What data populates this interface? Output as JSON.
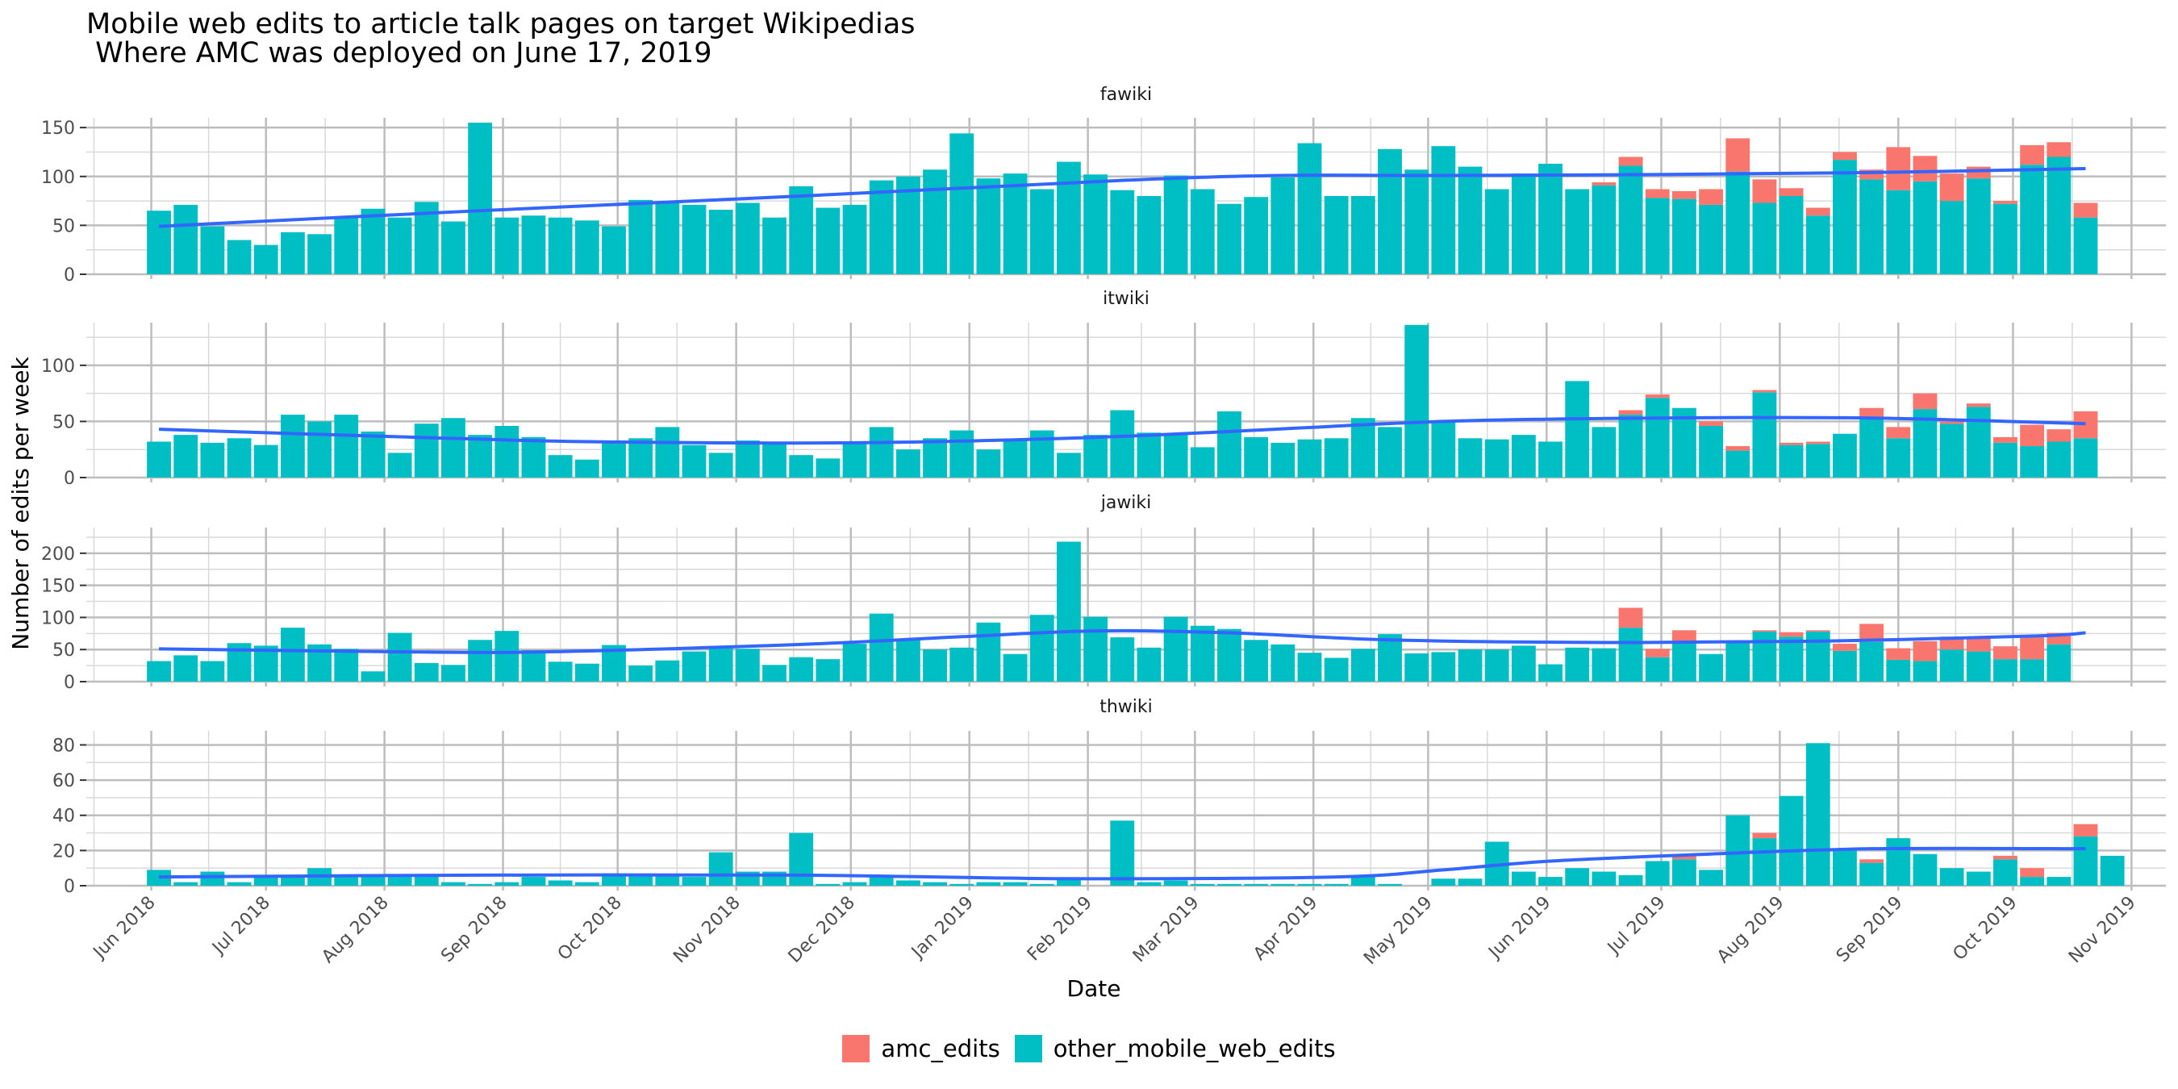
{
  "chart_data": {
    "type": "bar",
    "title": "Mobile web edits to article talk pages on target Wikipedias",
    "subtitle": " Where AMC was deployed on June 17, 2019",
    "xlabel": "Date",
    "ylabel": "Number of edits per week",
    "stacked": true,
    "smooth_trend_line": true,
    "trend_color": "#3366FF",
    "x_tick_labels": [
      "Jun 2018",
      "Jul 2018",
      "Aug 2018",
      "Sep 2018",
      "Oct 2018",
      "Nov 2018",
      "Dec 2018",
      "Jan 2019",
      "Feb 2019",
      "Mar 2019",
      "Apr 2019",
      "May 2019",
      "Jun 2019",
      "Jul 2019",
      "Aug 2019",
      "Sep 2019",
      "Oct 2019",
      "Nov 2019"
    ],
    "x_range": [
      "2018-05-15",
      "2019-11-10"
    ],
    "first_week": "2018-06-03",
    "week_interval_days": 7,
    "legend": {
      "position": "bottom",
      "entries": [
        {
          "key": "amc_edits",
          "label": "amc_edits",
          "color": "#F8766D"
        },
        {
          "key": "other",
          "label": "other_mobile_web_edits",
          "color": "#00BFC4"
        }
      ]
    },
    "panels": [
      {
        "name": "fawiki",
        "ylim": [
          0,
          160
        ],
        "yticks": [
          0,
          50,
          100,
          150
        ],
        "other": [
          65,
          71,
          49,
          35,
          30,
          43,
          41,
          58,
          67,
          58,
          74,
          54,
          155,
          58,
          60,
          58,
          55,
          49,
          76,
          74,
          71,
          66,
          73,
          58,
          90,
          68,
          71,
          96,
          100,
          107,
          144,
          98,
          103,
          87,
          115,
          102,
          86,
          80,
          101,
          87,
          72,
          79,
          99,
          134,
          80,
          80,
          128,
          107,
          131,
          110,
          87,
          103,
          113,
          87,
          91,
          111,
          78,
          77,
          71,
          105,
          73,
          80,
          60,
          117,
          97,
          86,
          95,
          75,
          98,
          72,
          112,
          120,
          58
        ],
        "amc": [
          0,
          0,
          0,
          0,
          0,
          0,
          0,
          0,
          0,
          0,
          0,
          0,
          0,
          0,
          0,
          0,
          0,
          0,
          0,
          0,
          0,
          0,
          0,
          0,
          0,
          0,
          0,
          0,
          0,
          0,
          0,
          0,
          0,
          0,
          0,
          0,
          0,
          0,
          0,
          0,
          0,
          0,
          0,
          0,
          0,
          0,
          0,
          0,
          0,
          0,
          0,
          0,
          0,
          0,
          3,
          9,
          9,
          8,
          16,
          34,
          24,
          8,
          8,
          8,
          10,
          44,
          26,
          28,
          12,
          3,
          20,
          15,
          15
        ],
        "trend": [
          [
            0,
            49
          ],
          [
            12,
            65
          ],
          [
            24,
            80
          ],
          [
            36,
            96
          ],
          [
            42,
            101
          ],
          [
            48,
            101
          ],
          [
            56,
            102
          ],
          [
            64,
            104
          ],
          [
            72,
            108
          ]
        ]
      },
      {
        "name": "itwiki",
        "ylim": [
          0,
          138
        ],
        "yticks": [
          0,
          50,
          100
        ],
        "other": [
          32,
          38,
          31,
          35,
          29,
          56,
          50,
          56,
          41,
          22,
          48,
          53,
          38,
          46,
          36,
          20,
          16,
          32,
          35,
          45,
          29,
          22,
          33,
          31,
          20,
          17,
          31,
          45,
          25,
          35,
          42,
          25,
          33,
          42,
          22,
          38,
          60,
          40,
          38,
          27,
          59,
          36,
          31,
          34,
          35,
          53,
          45,
          136,
          51,
          35,
          34,
          38,
          32,
          86,
          45,
          56,
          71,
          62,
          46,
          24,
          76,
          29,
          30,
          39,
          53,
          35,
          61,
          48,
          63,
          31,
          28,
          32,
          35
        ],
        "amc": [
          0,
          0,
          0,
          0,
          0,
          0,
          0,
          0,
          0,
          0,
          0,
          0,
          0,
          0,
          0,
          0,
          0,
          0,
          0,
          0,
          0,
          0,
          0,
          0,
          0,
          0,
          0,
          0,
          0,
          0,
          0,
          0,
          0,
          0,
          0,
          0,
          0,
          0,
          0,
          0,
          0,
          0,
          0,
          0,
          0,
          0,
          0,
          0,
          0,
          0,
          0,
          0,
          0,
          0,
          0,
          4,
          3,
          0,
          4,
          4,
          2,
          2,
          2,
          0,
          9,
          10,
          14,
          2,
          3,
          5,
          19,
          11,
          24
        ],
        "trend": [
          [
            0,
            43
          ],
          [
            8,
            37
          ],
          [
            16,
            32
          ],
          [
            26,
            31
          ],
          [
            34,
            35
          ],
          [
            40,
            41
          ],
          [
            48,
            50
          ],
          [
            56,
            53
          ],
          [
            64,
            53
          ],
          [
            72,
            48
          ]
        ]
      },
      {
        "name": "jawiki",
        "ylim": [
          0,
          240
        ],
        "yticks": [
          0,
          50,
          100,
          150,
          200
        ],
        "other": [
          32,
          41,
          32,
          60,
          56,
          84,
          58,
          51,
          16,
          76,
          29,
          26,
          65,
          79,
          49,
          31,
          28,
          57,
          25,
          33,
          47,
          52,
          51,
          26,
          38,
          35,
          59,
          106,
          65,
          50,
          53,
          92,
          43,
          104,
          218,
          101,
          69,
          53,
          101,
          87,
          82,
          65,
          58,
          45,
          37,
          51,
          74,
          44,
          46,
          50,
          50,
          56,
          27,
          53,
          52,
          84,
          38,
          62,
          43,
          64,
          78,
          70,
          78,
          48,
          62,
          34,
          32,
          50,
          47,
          35,
          35,
          58
        ],
        "amc": [
          0,
          0,
          0,
          0,
          0,
          0,
          0,
          0,
          0,
          0,
          0,
          0,
          0,
          0,
          0,
          0,
          0,
          0,
          0,
          0,
          0,
          0,
          0,
          0,
          0,
          0,
          0,
          0,
          0,
          0,
          0,
          0,
          0,
          0,
          0,
          0,
          0,
          0,
          0,
          0,
          0,
          0,
          0,
          0,
          0,
          0,
          0,
          0,
          0,
          0,
          0,
          0,
          0,
          0,
          0,
          31,
          13,
          18,
          0,
          0,
          2,
          7,
          2,
          11,
          28,
          18,
          31,
          20,
          23,
          20,
          34,
          18
        ],
        "trend": [
          [
            0,
            51
          ],
          [
            8,
            47
          ],
          [
            14,
            46
          ],
          [
            24,
            58
          ],
          [
            30,
            70
          ],
          [
            35,
            79
          ],
          [
            40,
            76
          ],
          [
            46,
            65
          ],
          [
            54,
            61
          ],
          [
            62,
            63
          ],
          [
            70,
            71
          ],
          [
            72,
            76
          ]
        ]
      },
      {
        "name": "thwiki",
        "ylim": [
          0,
          88
        ],
        "yticks": [
          0,
          20,
          40,
          60,
          80
        ],
        "other": [
          9,
          2,
          8,
          2,
          5,
          5,
          10,
          5,
          5,
          5,
          6,
          2,
          1,
          2,
          5,
          3,
          2,
          7,
          6,
          6,
          5,
          19,
          8,
          8,
          30,
          1,
          2,
          6,
          3,
          2,
          1,
          2,
          2,
          1,
          4,
          0,
          37,
          2,
          3,
          1,
          1,
          1,
          1,
          1,
          1,
          6,
          1,
          0,
          4,
          4,
          25,
          8,
          5,
          10,
          8,
          6,
          14,
          15,
          9,
          40,
          27,
          51,
          81,
          20,
          13,
          27,
          18,
          10,
          8,
          15,
          5,
          5,
          28,
          17
        ],
        "amc": [
          0,
          0,
          0,
          0,
          0,
          0,
          0,
          0,
          0,
          0,
          0,
          0,
          0,
          0,
          0,
          0,
          0,
          0,
          0,
          0,
          0,
          0,
          0,
          0,
          0,
          0,
          0,
          0,
          0,
          0,
          0,
          0,
          0,
          0,
          0,
          0,
          0,
          0,
          0,
          0,
          0,
          0,
          0,
          0,
          0,
          0,
          0,
          0,
          0,
          0,
          0,
          0,
          0,
          0,
          0,
          0,
          0,
          2,
          0,
          0,
          3,
          0,
          0,
          0,
          2,
          0,
          0,
          0,
          0,
          2,
          5,
          0,
          7,
          0
        ],
        "trend": [
          [
            0,
            5
          ],
          [
            12,
            6
          ],
          [
            24,
            6
          ],
          [
            34,
            4
          ],
          [
            44,
            5
          ],
          [
            48,
            9
          ],
          [
            52,
            14
          ],
          [
            58,
            18
          ],
          [
            64,
            21
          ],
          [
            72,
            21
          ]
        ]
      }
    ]
  }
}
